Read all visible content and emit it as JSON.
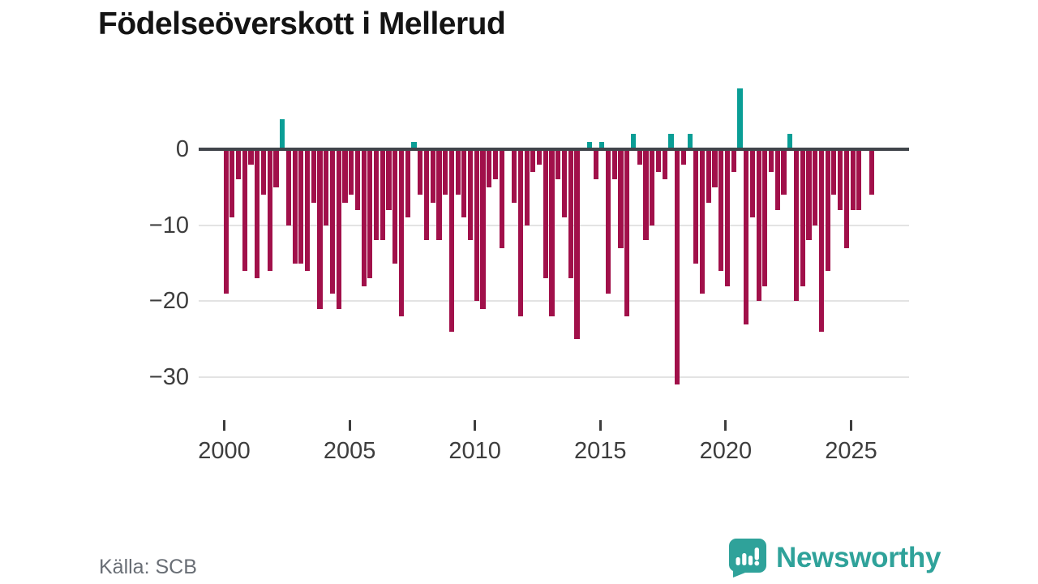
{
  "title": "Födelseöverskott i Mellerud",
  "source": "Källa: SCB",
  "brand": {
    "name": "Newsworthy",
    "color": "#2fa29a"
  },
  "axes": {
    "y_labels": [
      "0",
      "−10",
      "−20",
      "−30"
    ],
    "x_labels": [
      "2000",
      "2005",
      "2010",
      "2015",
      "2020",
      "2025"
    ]
  },
  "chart_data": {
    "type": "bar",
    "title": "Födelseöverskott i Mellerud",
    "frequency": "quarterly",
    "x_start": "2000-Q1",
    "x_end": "2025-Q4",
    "x_tick_years": [
      2000,
      2005,
      2010,
      2015,
      2020,
      2025
    ],
    "y_ticks": [
      0,
      -10,
      -20,
      -30
    ],
    "ylim": [
      -32,
      9
    ],
    "grid": "horizontal",
    "legend_position": "none",
    "negative_color": "#a1104a",
    "positive_color": "#0a9e96",
    "series": [
      {
        "name": "Födelseöverskott",
        "values": [
          -19,
          -9,
          -4,
          -16,
          -2,
          -17,
          -6,
          -16,
          -5,
          4,
          -10,
          -15,
          -15,
          -16,
          -7,
          -21,
          -10,
          -19,
          -21,
          -7,
          -6,
          -8,
          -18,
          -17,
          -12,
          -12,
          -8,
          -15,
          -22,
          -9,
          1,
          -6,
          -12,
          -7,
          -12,
          -6,
          -24,
          -6,
          -9,
          -12,
          -20,
          -21,
          -5,
          -4,
          -13,
          0,
          -7,
          -22,
          -10,
          -3,
          -2,
          -17,
          -22,
          -4,
          -9,
          -17,
          -25,
          0,
          1,
          -4,
          1,
          -19,
          -4,
          -13,
          -22,
          2,
          -2,
          -12,
          -10,
          -3,
          -4,
          2,
          -31,
          -2,
          2,
          -15,
          -19,
          -7,
          -5,
          -16,
          -18,
          -3,
          8,
          -23,
          -9,
          -20,
          -18,
          -3,
          -8,
          -6,
          2,
          -20,
          -18,
          -12,
          -10,
          -24,
          -16,
          -6,
          -8,
          -13,
          -8,
          -8,
          0,
          -6
        ]
      }
    ]
  }
}
